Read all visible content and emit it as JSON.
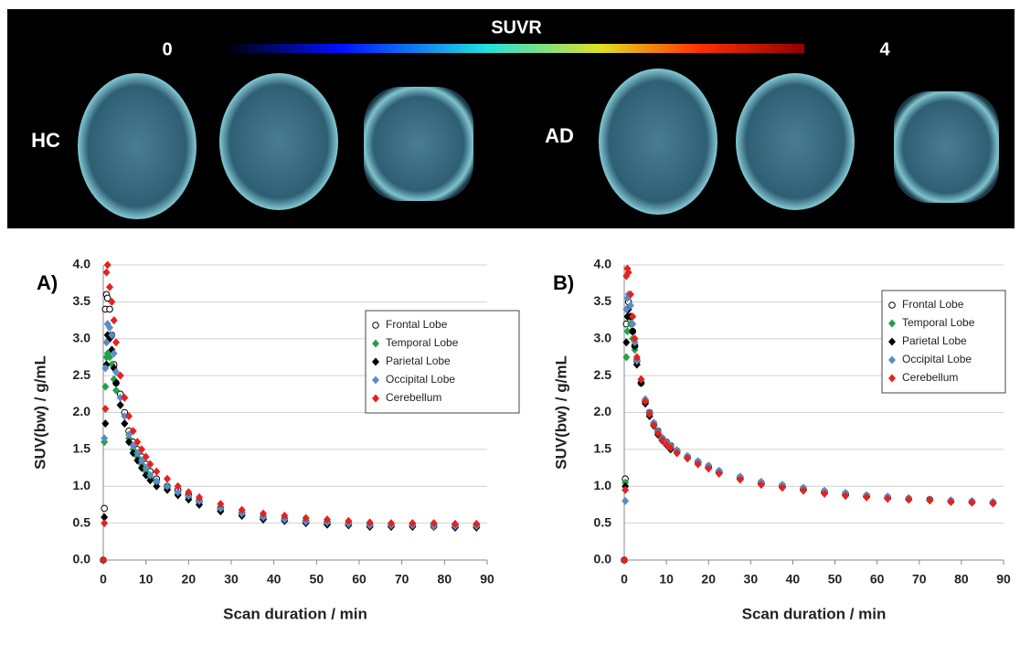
{
  "image_panel": {
    "colorbar_title": "SUVR",
    "colorbar_min": 0,
    "colorbar_max": 4,
    "group_labels": [
      "HC",
      "AD"
    ]
  },
  "chart_data": [
    {
      "type": "scatter",
      "panel_label": "A)",
      "xlabel": "Scan duration / min",
      "ylabel": "SUV(bw) / g/mL",
      "xlim": [
        0,
        90
      ],
      "xticks": [
        0,
        10,
        20,
        30,
        40,
        50,
        60,
        70,
        80,
        90
      ],
      "ylim": [
        0,
        4
      ],
      "yticks": [
        {
          "value": 0,
          "label": "0.0"
        },
        {
          "value": 0.5,
          "label": "0.5"
        },
        {
          "value": 1,
          "label": "1.0"
        },
        {
          "value": 1.5,
          "label": "1.5"
        },
        {
          "value": 2,
          "label": "2.0"
        },
        {
          "value": 2.5,
          "label": "2.5"
        },
        {
          "value": 3,
          "label": "3.0"
        },
        {
          "value": 3.5,
          "label": "3.5"
        },
        {
          "value": 4,
          "label": "4.0"
        }
      ],
      "grid": true,
      "legend": "upper right",
      "x": [
        0,
        0.25,
        0.5,
        0.75,
        1,
        1.5,
        2,
        2.5,
        3,
        4,
        5,
        6,
        7,
        8,
        9,
        10,
        11,
        12.5,
        15,
        17.5,
        20,
        22.5,
        27.5,
        32.5,
        37.5,
        42.5,
        47.5,
        52.5,
        57.5,
        62.5,
        67.5,
        72.5,
        77.5,
        82.5,
        87.5
      ],
      "series": [
        {
          "name": "Frontal Lobe",
          "color": "#000000",
          "marker": "circle-open",
          "values": [
            0.0,
            0.7,
            3.4,
            3.6,
            3.55,
            3.4,
            3.05,
            2.65,
            2.4,
            2.25,
            2.0,
            1.75,
            1.6,
            1.5,
            1.4,
            1.3,
            1.2,
            1.1,
            1.0,
            0.95,
            0.88,
            0.8,
            0.7,
            0.63,
            0.58,
            0.55,
            0.52,
            0.51,
            0.49,
            0.47,
            0.47,
            0.47,
            0.46,
            0.46,
            0.46
          ]
        },
        {
          "name": "Temporal Lobe",
          "color": "#1fa34a",
          "marker": "diamond",
          "values": [
            0.0,
            1.6,
            2.35,
            2.75,
            2.8,
            2.75,
            2.65,
            2.45,
            2.3,
            2.1,
            1.85,
            1.65,
            1.5,
            1.4,
            1.3,
            1.2,
            1.12,
            1.05,
            0.97,
            0.9,
            0.85,
            0.78,
            0.68,
            0.62,
            0.57,
            0.54,
            0.52,
            0.5,
            0.48,
            0.46,
            0.46,
            0.46,
            0.46,
            0.45,
            0.45
          ]
        },
        {
          "name": "Parietal Lobe",
          "color": "#000000",
          "marker": "diamond",
          "values": [
            0.0,
            0.58,
            1.85,
            2.65,
            3.05,
            3.0,
            2.85,
            2.6,
            2.4,
            2.1,
            1.85,
            1.6,
            1.45,
            1.35,
            1.25,
            1.15,
            1.08,
            1.0,
            0.95,
            0.88,
            0.82,
            0.75,
            0.66,
            0.6,
            0.55,
            0.53,
            0.5,
            0.48,
            0.47,
            0.45,
            0.45,
            0.45,
            0.45,
            0.44,
            0.44
          ]
        },
        {
          "name": "Occipital Lobe",
          "color": "#5b8cc8",
          "marker": "diamond",
          "values": [
            0.0,
            1.65,
            2.6,
            2.95,
            3.2,
            3.15,
            3.05,
            2.8,
            2.55,
            2.2,
            1.95,
            1.7,
            1.55,
            1.45,
            1.35,
            1.25,
            1.15,
            1.07,
            1.0,
            0.92,
            0.87,
            0.8,
            0.7,
            0.63,
            0.58,
            0.55,
            0.52,
            0.51,
            0.49,
            0.47,
            0.47,
            0.47,
            0.46,
            0.46,
            0.46
          ]
        },
        {
          "name": "Cerebellum",
          "color": "#e8201e",
          "marker": "diamond",
          "values": [
            0.0,
            0.5,
            2.05,
            3.9,
            4.0,
            3.7,
            3.5,
            3.25,
            2.95,
            2.5,
            2.2,
            1.95,
            1.75,
            1.6,
            1.5,
            1.4,
            1.3,
            1.2,
            1.1,
            1.0,
            0.92,
            0.85,
            0.76,
            0.68,
            0.63,
            0.6,
            0.57,
            0.55,
            0.53,
            0.51,
            0.5,
            0.5,
            0.5,
            0.49,
            0.49
          ]
        }
      ]
    },
    {
      "type": "scatter",
      "panel_label": "B)",
      "xlabel": "Scan duration / min",
      "ylabel": "SUV(bw) / g/mL",
      "xlim": [
        0,
        90
      ],
      "xticks": [
        0,
        10,
        20,
        30,
        40,
        50,
        60,
        70,
        80,
        90
      ],
      "ylim": [
        0,
        4
      ],
      "yticks": [
        {
          "value": 0,
          "label": "0.0"
        },
        {
          "value": 0.5,
          "label": "0.5"
        },
        {
          "value": 1,
          "label": "1.0"
        },
        {
          "value": 1.5,
          "label": "1.5"
        },
        {
          "value": 2,
          "label": "2.0"
        },
        {
          "value": 2.5,
          "label": "2.5"
        },
        {
          "value": 3,
          "label": "3.0"
        },
        {
          "value": 3.5,
          "label": "3.5"
        },
        {
          "value": 4,
          "label": "4.0"
        }
      ],
      "grid": true,
      "legend": "upper right",
      "x": [
        0,
        0.25,
        0.5,
        0.75,
        1,
        1.5,
        2,
        2.5,
        3,
        4,
        5,
        6,
        7,
        8,
        9,
        10,
        11,
        12.5,
        15,
        17.5,
        20,
        22.5,
        27.5,
        32.5,
        37.5,
        42.5,
        47.5,
        52.5,
        57.5,
        62.5,
        67.5,
        72.5,
        77.5,
        82.5,
        87.5
      ],
      "series": [
        {
          "name": "Frontal Lobe",
          "color": "#000000",
          "marker": "circle-open",
          "values": [
            0.0,
            1.1,
            3.2,
            3.4,
            3.5,
            3.3,
            3.1,
            2.9,
            2.7,
            2.4,
            2.15,
            2.0,
            1.85,
            1.75,
            1.65,
            1.6,
            1.55,
            1.48,
            1.4,
            1.33,
            1.27,
            1.2,
            1.12,
            1.05,
            1.01,
            0.97,
            0.93,
            0.9,
            0.87,
            0.85,
            0.83,
            0.82,
            0.8,
            0.79,
            0.78
          ]
        },
        {
          "name": "Temporal Lobe",
          "color": "#1fa34a",
          "marker": "diamond",
          "values": [
            0.0,
            1.05,
            2.75,
            3.1,
            3.3,
            3.2,
            3.0,
            2.85,
            2.65,
            2.4,
            2.15,
            1.98,
            1.85,
            1.73,
            1.64,
            1.58,
            1.53,
            1.47,
            1.39,
            1.32,
            1.26,
            1.19,
            1.11,
            1.04,
            1.0,
            0.96,
            0.92,
            0.89,
            0.86,
            0.84,
            0.82,
            0.81,
            0.79,
            0.78,
            0.77
          ]
        },
        {
          "name": "Parietal Lobe",
          "color": "#000000",
          "marker": "diamond",
          "values": [
            0.0,
            1.0,
            2.95,
            3.3,
            3.4,
            3.3,
            3.1,
            2.9,
            2.65,
            2.4,
            2.12,
            1.95,
            1.82,
            1.7,
            1.62,
            1.56,
            1.5,
            1.45,
            1.38,
            1.3,
            1.25,
            1.18,
            1.1,
            1.03,
            0.99,
            0.95,
            0.91,
            0.88,
            0.86,
            0.84,
            0.82,
            0.81,
            0.79,
            0.78,
            0.77
          ]
        },
        {
          "name": "Occipital Lobe",
          "color": "#5b8cc8",
          "marker": "diamond",
          "values": [
            0.0,
            0.8,
            3.4,
            3.55,
            3.6,
            3.45,
            3.2,
            2.95,
            2.7,
            2.45,
            2.18,
            2.0,
            1.86,
            1.75,
            1.66,
            1.6,
            1.55,
            1.49,
            1.41,
            1.34,
            1.28,
            1.21,
            1.13,
            1.06,
            1.02,
            0.98,
            0.94,
            0.91,
            0.88,
            0.86,
            0.84,
            0.82,
            0.81,
            0.8,
            0.79
          ]
        },
        {
          "name": "Cerebellum",
          "color": "#e8201e",
          "marker": "diamond",
          "values": [
            0.0,
            0.95,
            3.85,
            3.95,
            3.9,
            3.6,
            3.3,
            3.0,
            2.75,
            2.45,
            2.15,
            1.98,
            1.83,
            1.72,
            1.63,
            1.57,
            1.52,
            1.45,
            1.38,
            1.3,
            1.24,
            1.17,
            1.09,
            1.02,
            0.98,
            0.94,
            0.9,
            0.87,
            0.85,
            0.83,
            0.82,
            0.81,
            0.79,
            0.78,
            0.77
          ]
        }
      ]
    }
  ]
}
